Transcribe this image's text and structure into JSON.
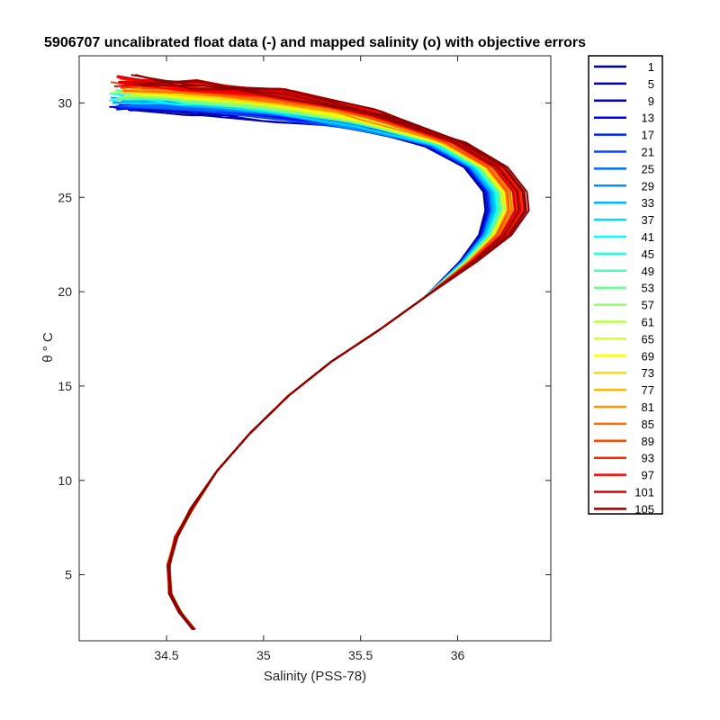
{
  "chart_data": {
    "type": "line",
    "title": "5906707 uncalibrated float data (-) and mapped salinity (o) with objective errors",
    "xlabel": "Salinity (PSS-78)",
    "ylabel": "θ ° C",
    "xlim": [
      34.05,
      36.48
    ],
    "ylim": [
      1.5,
      32.5
    ],
    "xticks": [
      34.5,
      35,
      35.5,
      36
    ],
    "xtick_labels": [
      "34.5",
      "35",
      "35.5",
      "36"
    ],
    "yticks": [
      5,
      10,
      15,
      20,
      25,
      30
    ],
    "ytick_labels": [
      "5",
      "10",
      "15",
      "20",
      "25",
      "30"
    ],
    "grid": false,
    "legend_position": "outside-right",
    "colormap": "jet",
    "legend_entries": [
      "1",
      "5",
      "9",
      "13",
      "17",
      "21",
      "25",
      "29",
      "33",
      "37",
      "41",
      "45",
      "49",
      "53",
      "57",
      "61",
      "65",
      "69",
      "73",
      "77",
      "81",
      "85",
      "89",
      "93",
      "97",
      "101",
      "105"
    ],
    "colors": [
      "#00008f",
      "#0000b5",
      "#0000d9",
      "#0000ff",
      "#0024ff",
      "#0049ff",
      "#006dff",
      "#0092ff",
      "#00b6ff",
      "#00dbff",
      "#00ffff",
      "#24ffdb",
      "#49ffb6",
      "#6dff92",
      "#92ff6d",
      "#b6ff49",
      "#dbff24",
      "#ffff00",
      "#ffdb00",
      "#ffb600",
      "#ff9200",
      "#ff6d00",
      "#ff4900",
      "#ff2400",
      "#ff0000",
      "#d90000",
      "#8f0000"
    ],
    "profile_shape": [
      {
        "s": 34.64,
        "t": 2.1
      },
      {
        "s": 34.57,
        "t": 3.0
      },
      {
        "s": 34.52,
        "t": 4.0
      },
      {
        "s": 34.51,
        "t": 5.5
      },
      {
        "s": 34.55,
        "t": 7.0
      },
      {
        "s": 34.63,
        "t": 8.5
      },
      {
        "s": 34.76,
        "t": 10.5
      },
      {
        "s": 34.93,
        "t": 12.5
      },
      {
        "s": 35.13,
        "t": 14.5
      },
      {
        "s": 35.35,
        "t": 16.3
      },
      {
        "s": 35.6,
        "t": 18.0
      },
      {
        "s": 35.83,
        "t": 19.7
      },
      {
        "s": 36.07,
        "t": 21.6
      },
      {
        "s": 36.22,
        "t": 23.0
      },
      {
        "s": 36.29,
        "t": 24.3
      },
      {
        "s": 36.28,
        "t": 25.3
      },
      {
        "s": 36.18,
        "t": 26.6
      },
      {
        "s": 35.98,
        "t": 27.8
      },
      {
        "s": 35.65,
        "t": 28.9
      },
      {
        "s": 35.2,
        "t": 29.7
      },
      {
        "s": 34.75,
        "t": 30.1
      },
      {
        "s": 34.4,
        "t": 30.3
      }
    ]
  }
}
